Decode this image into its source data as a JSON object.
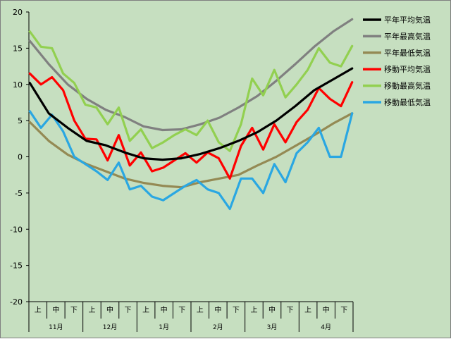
{
  "chart_data": {
    "type": "line",
    "ylim": [
      -20,
      20
    ],
    "yticks": [
      20,
      15,
      10,
      5,
      0,
      -5,
      -10,
      -15,
      -20
    ],
    "grid": false,
    "legend": "right",
    "months": [
      "11月",
      "12月",
      "1月",
      "2月",
      "3月",
      "4月"
    ],
    "subperiods": [
      "上",
      "中",
      "下"
    ],
    "x_points": 180,
    "series": [
      {
        "name": "平年平均気温",
        "color": "#000000",
        "values": [
          10.2,
          6.0,
          4.0,
          2.2,
          1.6,
          0.6,
          -0.2,
          -0.4,
          -0.2,
          0.4,
          1.2,
          2.2,
          3.4,
          5.0,
          7.0,
          9.2,
          10.7,
          12.2
        ]
      },
      {
        "name": "平年最高気温",
        "color": "#808080",
        "values": [
          16.0,
          12.8,
          10.0,
          8.0,
          6.5,
          5.5,
          4.2,
          3.7,
          3.8,
          4.5,
          5.4,
          6.8,
          8.4,
          10.5,
          12.8,
          15.2,
          17.3,
          19.0
        ]
      },
      {
        "name": "平年最低気温",
        "color": "#948a54",
        "values": [
          4.8,
          2.2,
          0.3,
          -1.0,
          -2.0,
          -3.0,
          -3.6,
          -4.0,
          -4.2,
          -3.5,
          -3.0,
          -2.5,
          -1.2,
          0.0,
          1.5,
          3.0,
          4.6,
          6.0
        ]
      },
      {
        "name": "移動平均気温",
        "color": "#ff0000",
        "values": [
          11.5,
          10.0,
          11.0,
          9.2,
          5.0,
          2.5,
          2.4,
          -0.5,
          3.0,
          -1.2,
          0.6,
          -2.0,
          -1.5,
          -0.5,
          0.5,
          -0.8,
          0.6,
          -0.2,
          -3.0,
          1.5,
          4.0,
          1.0,
          4.5,
          2.0,
          4.8,
          6.5,
          9.5,
          8.0,
          7.0,
          10.3
        ]
      },
      {
        "name": "移動最高気温",
        "color": "#92d050",
        "values": [
          17.3,
          15.2,
          15.0,
          11.5,
          10.2,
          7.2,
          6.8,
          4.5,
          6.8,
          2.2,
          3.8,
          1.2,
          2.0,
          3.0,
          3.8,
          3.0,
          5.0,
          2.0,
          0.8,
          4.5,
          10.8,
          8.5,
          12.0,
          8.2,
          10.0,
          12.0,
          15.0,
          13.0,
          12.5,
          15.3
        ]
      },
      {
        "name": "移動最低気温",
        "color": "#2aa7e2",
        "values": [
          6.3,
          4.0,
          5.8,
          3.5,
          0.0,
          -1.0,
          -2.0,
          -3.2,
          -0.8,
          -4.5,
          -4.0,
          -5.5,
          -6.0,
          -5.0,
          -4.0,
          -3.2,
          -4.5,
          -5.0,
          -7.2,
          -3.0,
          -3.0,
          -5.0,
          -1.0,
          -3.5,
          0.5,
          2.0,
          4.0,
          0.0,
          0.0,
          6.0
        ]
      }
    ]
  }
}
